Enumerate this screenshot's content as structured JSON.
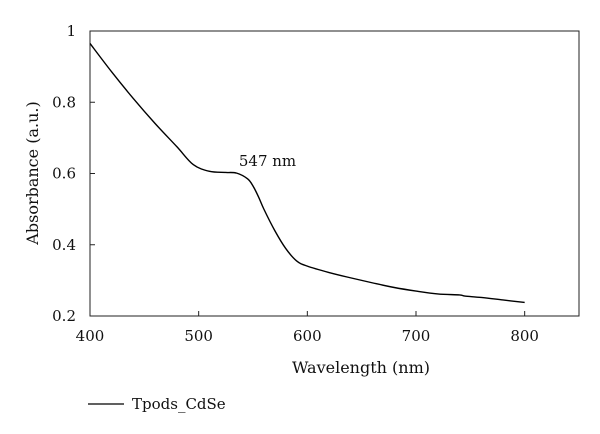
{
  "chart_data": {
    "type": "line",
    "xlabel": "Wavelength (nm)",
    "ylabel": "Absorbance (a.u.)",
    "xlim": [
      400,
      850
    ],
    "ylim": [
      0.2,
      1.0
    ],
    "x_ticks": [
      400,
      500,
      600,
      700,
      800
    ],
    "x_tick_labels": [
      "400",
      "500",
      "600",
      "700",
      "800"
    ],
    "y_ticks": [
      0.2,
      0.4,
      0.6,
      0.8,
      1.0
    ],
    "y_tick_labels": [
      "0.2",
      "0.4",
      "0.6",
      "0.8",
      "1"
    ],
    "grid": false,
    "legend_position": "bottom-left",
    "series": [
      {
        "name": "Tpods_CdSe",
        "color": "#000000",
        "x": [
          400,
          420,
          440,
          460,
          480,
          495,
          510,
          525,
          535,
          545,
          550,
          555,
          560,
          570,
          580,
          590,
          600,
          620,
          640,
          660,
          680,
          700,
          720,
          740,
          745,
          760,
          780,
          800
        ],
        "y": [
          0.965,
          0.885,
          0.81,
          0.74,
          0.675,
          0.625,
          0.606,
          0.603,
          0.601,
          0.585,
          0.565,
          0.535,
          0.5,
          0.44,
          0.39,
          0.355,
          0.34,
          0.322,
          0.307,
          0.293,
          0.28,
          0.27,
          0.262,
          0.259,
          0.256,
          0.252,
          0.245,
          0.238
        ]
      }
    ],
    "annotations": [
      {
        "text": "547 nm",
        "x": 537,
        "y": 0.615
      }
    ]
  }
}
